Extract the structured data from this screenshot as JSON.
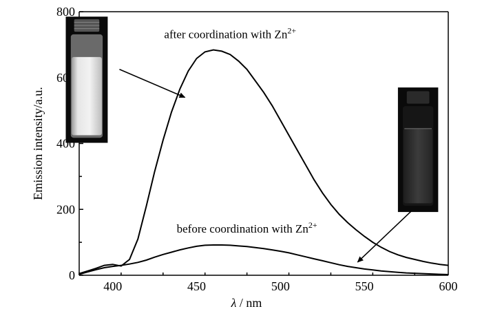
{
  "chart_data": {
    "type": "line",
    "xlabel": "λ / nm",
    "xlabel_symbol": "λ",
    "xlabel_unit": " / nm",
    "ylabel": "Emission intensity/a.u.",
    "xlim": [
      380,
      600
    ],
    "ylim": [
      0,
      800
    ],
    "x_ticks": [
      400,
      450,
      500,
      550,
      600
    ],
    "y_ticks": [
      0,
      200,
      400,
      600,
      800
    ],
    "grid": false,
    "series": [
      {
        "x": [
          380,
          385,
          390,
          395,
          400,
          405,
          410,
          415,
          420,
          425,
          430,
          435,
          440,
          445,
          450,
          455,
          460,
          465,
          470,
          475,
          480,
          485,
          490,
          495,
          500,
          505,
          510,
          515,
          520,
          525,
          530,
          535,
          540,
          545,
          550,
          555,
          560,
          565,
          570,
          575,
          580,
          585,
          590,
          595,
          600
        ],
        "values": [
          5,
          13,
          21,
          30,
          33,
          28,
          48,
          110,
          210,
          315,
          410,
          495,
          565,
          620,
          658,
          678,
          684,
          680,
          670,
          650,
          625,
          590,
          555,
          515,
          470,
          425,
          380,
          335,
          290,
          250,
          215,
          185,
          160,
          138,
          118,
          100,
          85,
          72,
          62,
          54,
          48,
          42,
          37,
          33,
          30
        ]
      },
      {
        "x": [
          380,
          385,
          390,
          395,
          400,
          405,
          410,
          415,
          420,
          425,
          430,
          435,
          440,
          445,
          450,
          455,
          460,
          465,
          470,
          475,
          480,
          485,
          490,
          495,
          500,
          505,
          510,
          515,
          520,
          525,
          530,
          535,
          540,
          545,
          550,
          555,
          560,
          565,
          570,
          575,
          580,
          585,
          590,
          595,
          600
        ],
        "values": [
          3,
          10,
          17,
          23,
          27,
          30,
          34,
          39,
          46,
          55,
          63,
          70,
          77,
          83,
          88,
          91,
          92,
          92,
          91,
          89,
          87,
          84,
          81,
          77,
          73,
          68,
          62,
          56,
          50,
          44,
          38,
          32,
          27,
          23,
          19,
          16,
          13,
          11,
          9,
          7,
          6,
          5,
          4,
          3,
          2
        ]
      }
    ],
    "annotations": [
      {
        "text": "after coordination with Zn",
        "superscript": "2+",
        "x": 470,
        "y": 720,
        "arrow_from": [
          404,
          625
        ],
        "arrow_to": [
          443,
          540
        ]
      },
      {
        "text": "before coordination with Zn",
        "superscript": "2+",
        "x": 480,
        "y": 130,
        "arrow_from": [
          578,
          195
        ],
        "arrow_to": [
          546,
          40
        ]
      }
    ],
    "photos": [
      {
        "name": "vial-bright-photo",
        "x0": 372,
        "x1": 397,
        "y0": 785,
        "y1": 402
      },
      {
        "name": "vial-dark-photo",
        "x0": 570,
        "x1": 594,
        "y0": 570,
        "y1": 192
      }
    ]
  }
}
